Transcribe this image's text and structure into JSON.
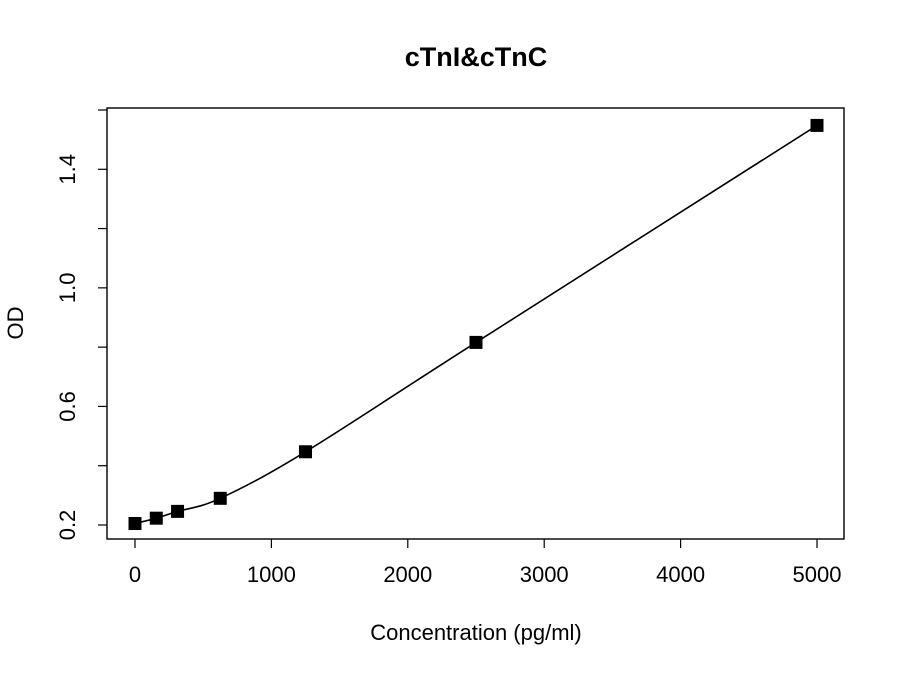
{
  "chart_data": {
    "type": "scatter",
    "title": "cTnI&cTnC",
    "xlabel": "Concentration (pg/ml)",
    "ylabel": "OD",
    "xlim": [
      0,
      5000
    ],
    "ylim": [
      0.2,
      1.6
    ],
    "x_ticks": [
      0,
      1000,
      2000,
      3000,
      4000,
      5000
    ],
    "y_ticks": [
      0.2,
      0.4,
      0.6,
      0.8,
      1.0,
      1.2,
      1.4,
      1.6
    ],
    "y_tick_labels": [
      "0.2",
      "",
      "0.6",
      "",
      "1.0",
      "",
      "1.4",
      ""
    ],
    "points": [
      {
        "x": 0,
        "y": 0.205
      },
      {
        "x": 156,
        "y": 0.223
      },
      {
        "x": 312,
        "y": 0.246
      },
      {
        "x": 625,
        "y": 0.29
      },
      {
        "x": 1250,
        "y": 0.447
      },
      {
        "x": 2500,
        "y": 0.816
      },
      {
        "x": 5000,
        "y": 1.548
      }
    ],
    "fit_curve": "smooth",
    "marker": "square",
    "color": "#000000",
    "grid": false,
    "legend": false
  }
}
